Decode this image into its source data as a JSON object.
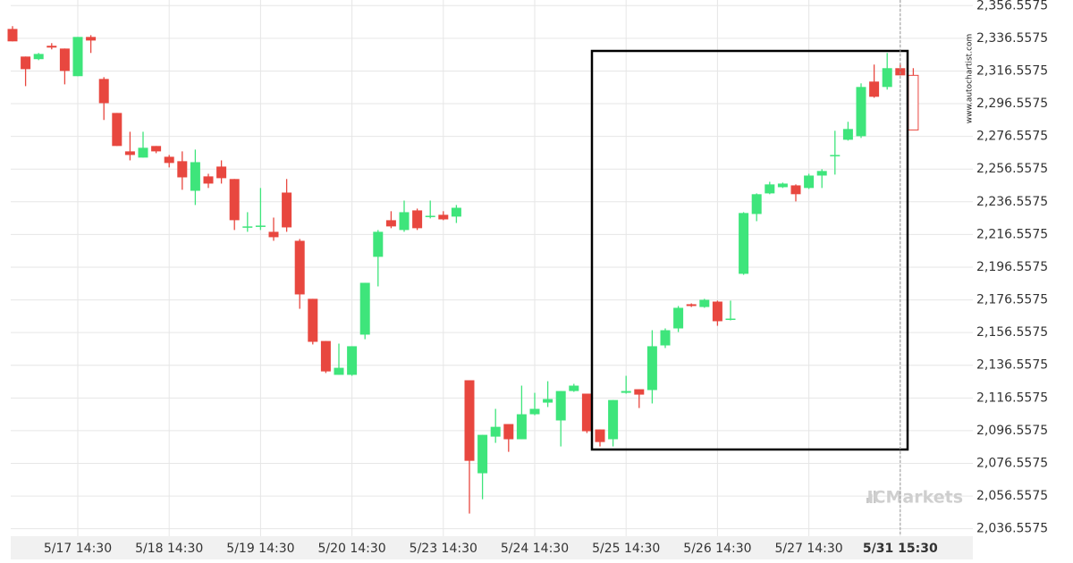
{
  "chart_data": {
    "type": "candlestick",
    "categories": [
      null,
      null,
      null,
      null,
      null,
      "5/17 14:30",
      null,
      null,
      null,
      null,
      null,
      null,
      "5/18 14:30",
      null,
      null,
      null,
      null,
      null,
      null,
      "5/19 14:30",
      null,
      null,
      null,
      null,
      null,
      null,
      "5/20 14:30",
      null,
      null,
      null,
      null,
      null,
      null,
      "5/23 14:30",
      null,
      null,
      null,
      null,
      null,
      null,
      "5/24 14:30",
      null,
      null,
      null,
      null,
      null,
      null,
      "5/25 14:30",
      null,
      null,
      null,
      null,
      null,
      null,
      "5/26 14:30",
      null,
      null,
      null,
      null,
      null,
      null,
      "5/27 14:30",
      null,
      null,
      null,
      null,
      null,
      null,
      "5/31 15:30",
      null
    ],
    "open": [
      2342.3,
      2325.4,
      2323.8,
      2332.0,
      2330.3,
      2313.4,
      2337.4,
      2311.7,
      2290.9,
      2267.4,
      2263.6,
      2270.7,
      2264.1,
      2261.4,
      2243.3,
      2252.1,
      2258.1,
      2250.5,
      2220.9,
      2221.5,
      2218.2,
      2242.2,
      2212.7,
      2177.2,
      2151.4,
      2130.7,
      2130.7,
      2155.3,
      2202.9,
      2225.3,
      2219.3,
      2231.3,
      2227.5,
      2228.6,
      2227.5,
      2127.4,
      2070.5,
      2092.9,
      2100.6,
      2091.3,
      2106.6,
      2113.7,
      2102.8,
      2120.8,
      2119.2,
      2097.3,
      2091.3,
      2119.7,
      2121.9,
      2121.4,
      2148.7,
      2159.1,
      2173.9,
      2172.2,
      2175.5,
      2164.6,
      2192.5,
      2229.1,
      2241.7,
      2245.5,
      2246.6,
      2245.0,
      2252.6,
      2264.7,
      2274.5,
      2276.7,
      2310.1,
      2306.8,
      2318.3,
      2313.9
    ],
    "high": [
      2344.0,
      2325.4,
      2327.6,
      2333.6,
      2330.3,
      2337.4,
      2338.5,
      2312.8,
      2290.9,
      2279.4,
      2279.4,
      2270.7,
      2265.2,
      2267.4,
      2268.5,
      2253.7,
      2261.9,
      2250.5,
      2230.2,
      2245.0,
      2226.9,
      2250.5,
      2213.8,
      2177.2,
      2151.4,
      2149.8,
      2148.2,
      2187.0,
      2219.3,
      2230.8,
      2237.3,
      2232.4,
      2237.3,
      2230.8,
      2234.6,
      2127.4,
      2094.0,
      2109.9,
      2100.6,
      2124.1,
      2119.7,
      2126.8,
      2120.8,
      2125.2,
      2119.2,
      2097.3,
      2115.3,
      2130.1,
      2121.9,
      2158.0,
      2159.1,
      2172.8,
      2174.4,
      2177.2,
      2176.1,
      2176.1,
      2230.2,
      2241.7,
      2248.8,
      2248.3,
      2247.2,
      2253.7,
      2256.5,
      2280.0,
      2285.5,
      2309.0,
      2320.5,
      2327.6,
      2321.0,
      2318.3
    ],
    "low": [
      2334.7,
      2307.3,
      2323.2,
      2329.8,
      2308.4,
      2313.4,
      2327.6,
      2286.6,
      2270.7,
      2261.9,
      2263.6,
      2266.3,
      2257.6,
      2243.9,
      2234.6,
      2245.0,
      2247.7,
      2219.3,
      2218.2,
      2219.3,
      2212.7,
      2218.2,
      2171.1,
      2149.3,
      2131.8,
      2130.7,
      2130.1,
      2152.5,
      2184.8,
      2220.4,
      2218.2,
      2219.3,
      2226.4,
      2225.3,
      2223.6,
      2045.9,
      2054.6,
      2089.1,
      2083.6,
      2091.3,
      2106.0,
      2111.0,
      2086.9,
      2120.3,
      2095.1,
      2086.9,
      2086.9,
      2119.2,
      2110.4,
      2113.2,
      2147.1,
      2156.9,
      2172.2,
      2171.7,
      2160.7,
      2164.0,
      2191.9,
      2224.7,
      2241.2,
      2245.0,
      2236.8,
      2244.4,
      2245.0,
      2253.2,
      2274.0,
      2275.6,
      2300.2,
      2305.2,
      2313.9,
      2280.5
    ],
    "close": [
      2334.7,
      2317.7,
      2327.0,
      2330.9,
      2316.6,
      2337.4,
      2335.2,
      2296.9,
      2270.7,
      2265.2,
      2269.6,
      2267.4,
      2260.3,
      2251.5,
      2260.8,
      2247.7,
      2251.0,
      2225.3,
      2221.5,
      2222.0,
      2214.9,
      2220.9,
      2179.9,
      2150.9,
      2132.8,
      2135.0,
      2148.2,
      2187.0,
      2218.2,
      2221.5,
      2230.2,
      2220.4,
      2228.0,
      2225.8,
      2232.9,
      2078.1,
      2094.0,
      2098.9,
      2091.3,
      2106.6,
      2109.9,
      2115.9,
      2120.8,
      2124.1,
      2096.2,
      2089.6,
      2115.3,
      2120.8,
      2118.6,
      2148.2,
      2158.0,
      2171.7,
      2172.8,
      2176.6,
      2163.5,
      2165.1,
      2229.7,
      2241.2,
      2247.2,
      2247.7,
      2241.2,
      2252.6,
      2255.4,
      2265.2,
      2281.1,
      2306.8,
      2300.8,
      2318.3,
      2313.9,
      2280.5
    ],
    "up_color": "#3ee57b",
    "down_color": "#e8473f",
    "ylim": [
      2032,
      2360
    ],
    "yticks": [
      {
        "value": 2036.5575,
        "label": "2,036.5575"
      },
      {
        "value": 2056.5575,
        "label": "2,056.5575"
      },
      {
        "value": 2076.5575,
        "label": "2,076.5575"
      },
      {
        "value": 2096.5575,
        "label": "2,096.5575"
      },
      {
        "value": 2116.5575,
        "label": "2,116.5575"
      },
      {
        "value": 2136.5575,
        "label": "2,136.5575"
      },
      {
        "value": 2156.5575,
        "label": "2,156.5575"
      },
      {
        "value": 2176.5575,
        "label": "2,176.5575"
      },
      {
        "value": 2196.5575,
        "label": "2,196.5575"
      },
      {
        "value": 2216.5575,
        "label": "2,216.5575"
      },
      {
        "value": 2236.5575,
        "label": "2,236.5575"
      },
      {
        "value": 2256.5575,
        "label": "2,256.5575"
      },
      {
        "value": 2276.5575,
        "label": "2,276.5575"
      },
      {
        "value": 2296.5575,
        "label": "2,296.5575"
      },
      {
        "value": 2316.5575,
        "label": "2,316.5575"
      },
      {
        "value": 2336.5575,
        "label": "2,336.5575"
      },
      {
        "value": 2356.5575,
        "label": "2,356.5575"
      }
    ],
    "grid": true,
    "watermark": "www.autochartist.com",
    "logo": "ICMarkets"
  }
}
